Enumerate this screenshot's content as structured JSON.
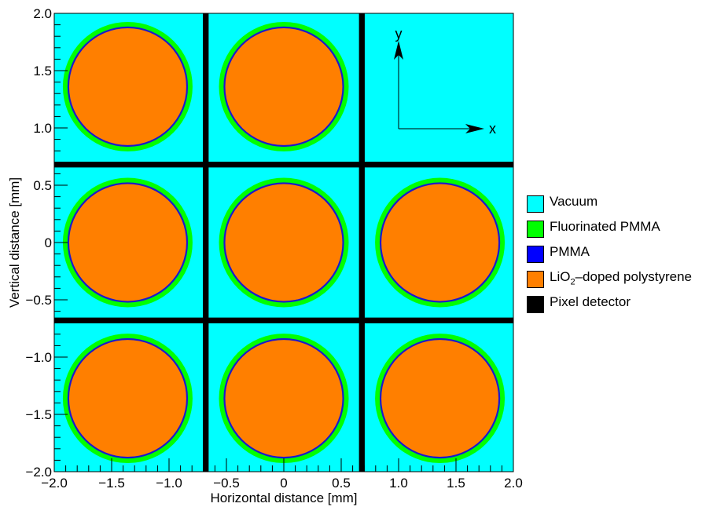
{
  "axes": {
    "xlabel": "Horizontal distance [mm]",
    "ylabel": "Vertical distance [mm]",
    "xlim": [
      -2.0,
      2.0
    ],
    "ylim": [
      -2.0,
      2.0
    ],
    "major_ticks": [
      -2.0,
      -1.5,
      -1.0,
      -0.5,
      0,
      0.5,
      1.0,
      1.5,
      2.0
    ],
    "x_tick_labels": [
      "−2.0",
      "−1.5",
      "−1.0",
      "−0.5",
      "0",
      "0.5",
      "1.0",
      "1.5",
      "2.0"
    ],
    "y_tick_labels": [
      "−2.0",
      "−1.5",
      "−1.0",
      "−0.5",
      "0",
      "0.5",
      "1.0",
      "1.5",
      "2.0"
    ]
  },
  "geometry_values": {
    "cell_centers": [
      -1.36,
      0,
      1.36
    ],
    "fiber_cells_top_row": [
      -1.36,
      0
    ],
    "core_radius": 0.51,
    "pmma_radius": 0.525,
    "fluor_radius": 0.565,
    "detector_lines": [
      -0.68,
      0.68
    ],
    "detector_thickness": 0.05
  },
  "colors": {
    "vacuum": "#00ffff",
    "fluorinated_pmma": "#00ff00",
    "pmma": "#1a1acc",
    "core": "#ff7f00",
    "detector": "#000000"
  },
  "inset_axes": {
    "x_label": "x",
    "y_label": "y"
  },
  "legend": {
    "items": [
      {
        "key": "vacuum",
        "label": "Vacuum",
        "color": "#00ffff"
      },
      {
        "key": "fluor",
        "label": "Fluorinated PMMA",
        "color": "#00ff00"
      },
      {
        "key": "pmma",
        "label": "PMMA",
        "color": "#0000ff"
      },
      {
        "key": "core",
        "label_pre": "LiO",
        "label_sub": "2",
        "label_post": "–doped polystyrene",
        "color": "#ff7f00"
      },
      {
        "key": "detector",
        "label": "Pixel detector",
        "color": "#000000"
      }
    ]
  }
}
